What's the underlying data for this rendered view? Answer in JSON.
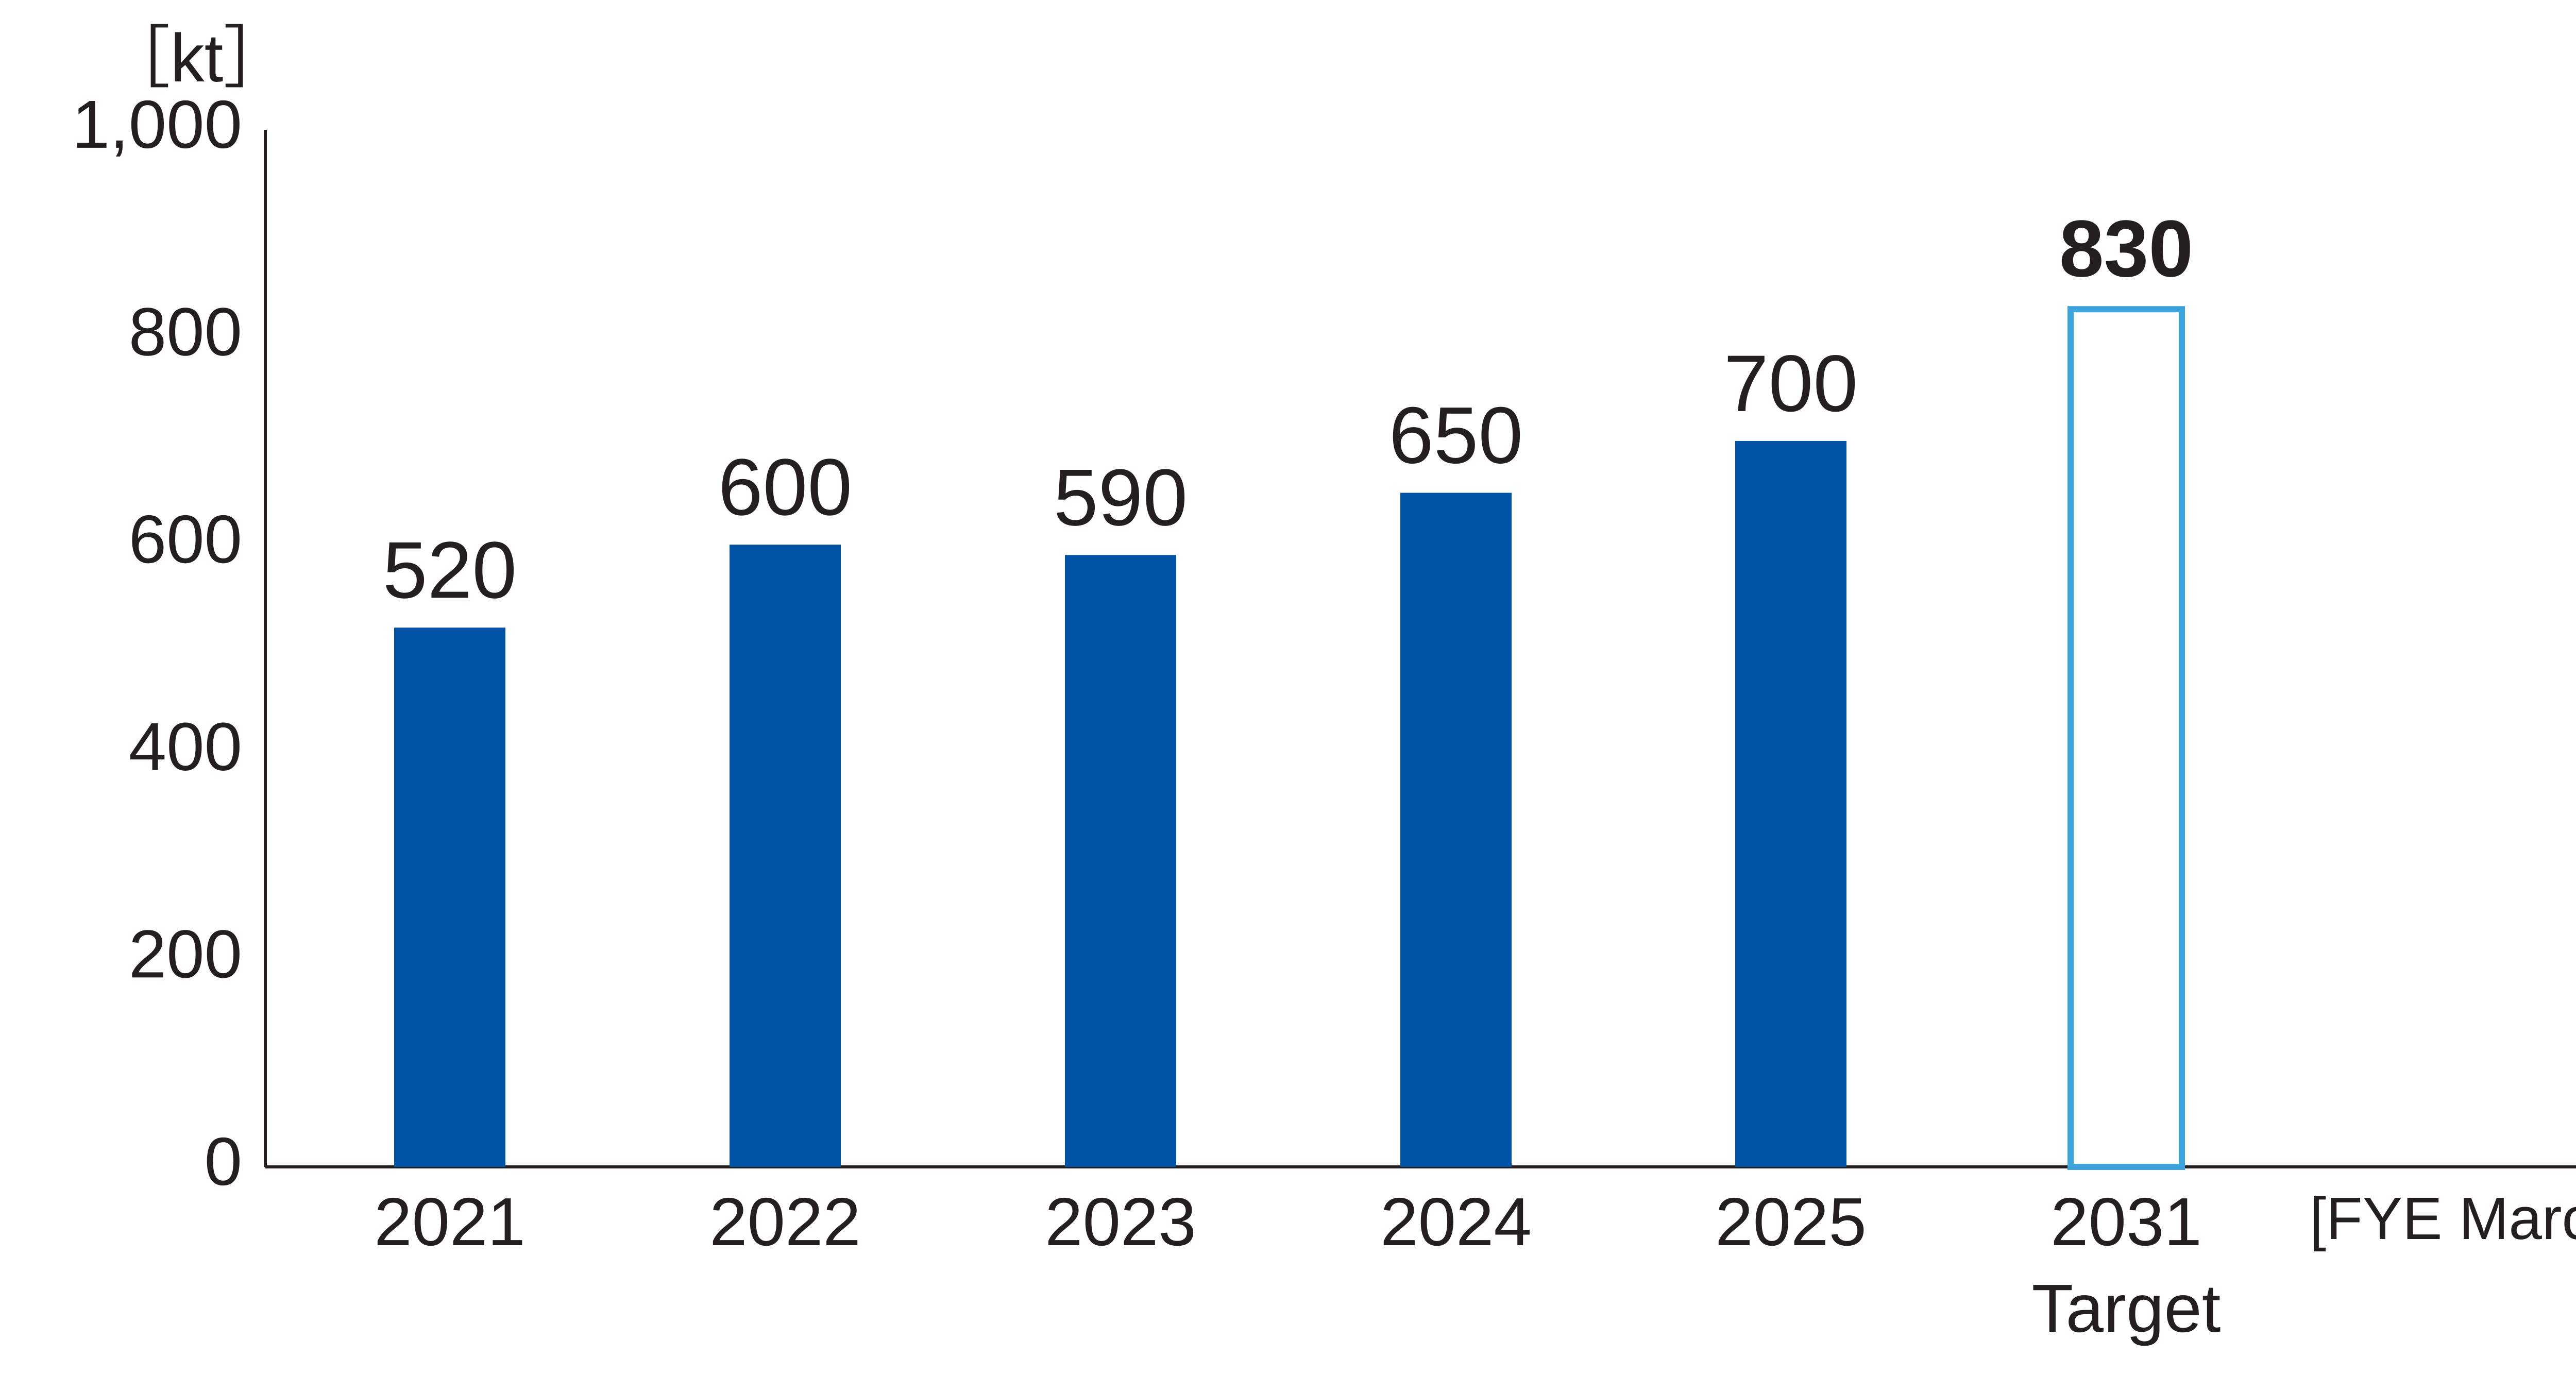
{
  "chart_data": {
    "type": "bar",
    "title": "",
    "ylabel": "［kt］",
    "xlabel": "[FYE March]",
    "ylim": [
      0,
      1000
    ],
    "yticks": [
      "0",
      "200",
      "400",
      "600",
      "800",
      "1,000"
    ],
    "categories": [
      "2021",
      "2022",
      "2023",
      "2024",
      "2025",
      "2031"
    ],
    "category_sublabels": [
      "",
      "",
      "",
      "",
      "",
      "Target"
    ],
    "values": [
      520,
      600,
      590,
      650,
      700,
      830
    ],
    "value_labels": [
      "520",
      "600",
      "590",
      "650",
      "700",
      "830"
    ],
    "grid": false,
    "colors": {
      "bar_actual": "#0052a4",
      "bar_target_outline": "#3ca3dc",
      "target_label": "#0a55a5",
      "text": "#231f20",
      "axis": "#231f20"
    },
    "target_index": 5
  }
}
